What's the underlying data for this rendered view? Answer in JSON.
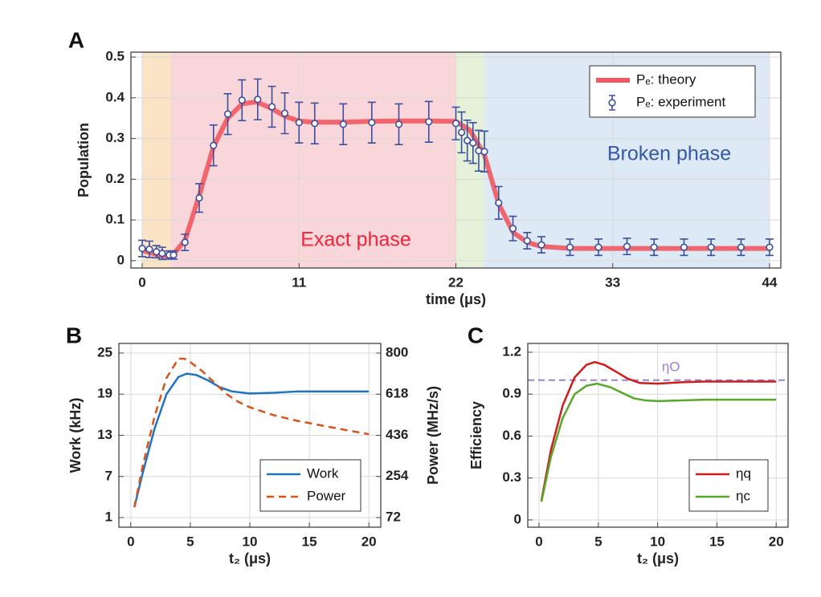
{
  "chart_data": [
    {
      "panel_label": "A",
      "type": "line",
      "xlabel": "time (μs)",
      "ylabel": "Population",
      "xlim": [
        -0.79,
        44.79
      ],
      "ylim": [
        -0.018,
        0.512
      ],
      "xticks": [
        0,
        11,
        22,
        33,
        44
      ],
      "yticks": [
        0,
        0.1,
        0.2,
        0.3,
        0.4,
        0.5
      ],
      "grid": true,
      "legend": "upper right",
      "regions": [
        {
          "from": 0,
          "to": 2,
          "color": "#fbe3c6"
        },
        {
          "from": 2,
          "to": 22,
          "color": "#f9d6d9"
        },
        {
          "from": 22,
          "to": 24,
          "color": "#e5f1d8"
        },
        {
          "from": 24,
          "to": 44,
          "color": "#dde9f4"
        }
      ],
      "annotations": [
        {
          "text": "Exact phase",
          "color": "#f2233a"
        },
        {
          "text": "Broken phase",
          "color": "#3358a8"
        }
      ],
      "series": [
        {
          "name": "Pₑ: theory",
          "style": "line",
          "color": "#f25860",
          "x": [
            0,
            1,
            2,
            3,
            4,
            5,
            6,
            7,
            8,
            9,
            10,
            11,
            12,
            14,
            16,
            18,
            20,
            22,
            23,
            24,
            25,
            26,
            27,
            28,
            30,
            35,
            40,
            44
          ],
          "values": [
            0.025,
            0.015,
            0.008,
            0.05,
            0.16,
            0.28,
            0.35,
            0.385,
            0.39,
            0.375,
            0.355,
            0.343,
            0.34,
            0.34,
            0.342,
            0.343,
            0.343,
            0.342,
            0.32,
            0.26,
            0.14,
            0.07,
            0.045,
            0.035,
            0.03,
            0.03,
            0.03,
            0.03
          ]
        },
        {
          "name": "Pₑ: experiment",
          "style": "errorbar",
          "color": "#3a4fa0",
          "x": [
            0,
            0.5,
            1,
            1.4,
            1.9,
            2.2,
            3,
            4,
            5,
            6,
            7,
            8.1,
            9.1,
            10,
            11,
            12.1,
            14.1,
            16.1,
            18,
            20.1,
            22,
            22.4,
            22.8,
            23.2,
            23.6,
            24,
            25,
            26,
            27,
            28,
            30,
            32,
            34,
            35.9,
            38,
            39.9,
            42,
            44
          ],
          "values": [
            0.03,
            0.028,
            0.022,
            0.018,
            0.014,
            0.014,
            0.045,
            0.154,
            0.283,
            0.36,
            0.394,
            0.396,
            0.378,
            0.362,
            0.339,
            0.337,
            0.335,
            0.339,
            0.335,
            0.341,
            0.337,
            0.315,
            0.295,
            0.289,
            0.27,
            0.268,
            0.142,
            0.079,
            0.049,
            0.039,
            0.033,
            0.033,
            0.035,
            0.033,
            0.033,
            0.033,
            0.033,
            0.033
          ],
          "errors": [
            0.02,
            0.02,
            0.015,
            0.015,
            0.01,
            0.01,
            0.02,
            0.035,
            0.05,
            0.05,
            0.05,
            0.05,
            0.05,
            0.05,
            0.05,
            0.05,
            0.05,
            0.05,
            0.05,
            0.05,
            0.04,
            0.05,
            0.05,
            0.05,
            0.05,
            0.05,
            0.04,
            0.03,
            0.02,
            0.02,
            0.02,
            0.02,
            0.02,
            0.02,
            0.02,
            0.02,
            0.02,
            0.02
          ]
        }
      ]
    },
    {
      "panel_label": "B",
      "type": "line",
      "xlabel": "t₂ (μs)",
      "ylabel": "Work (kHz)",
      "y2label": "Power (MHz/s)",
      "xlim": [
        -1,
        21
      ],
      "ylim": [
        -0.4,
        26.4
      ],
      "y2lim": [
        29.4,
        842.6
      ],
      "xticks": [
        0,
        5,
        10,
        15,
        20
      ],
      "yticks": [
        1,
        7,
        13,
        19,
        25
      ],
      "y2ticks": [
        72,
        254,
        436,
        618,
        800
      ],
      "grid": true,
      "legend": "lower right",
      "series": [
        {
          "name": "Work",
          "style": "line",
          "color": "#1f74c0",
          "x": [
            0.3,
            1,
            2,
            3,
            4,
            4.7,
            5.5,
            6.5,
            7.5,
            8.5,
            10,
            12,
            14,
            16,
            18,
            20
          ],
          "values": [
            2.5,
            7.5,
            14,
            19,
            21.5,
            22,
            21.8,
            21,
            20,
            19.4,
            19.1,
            19.2,
            19.4,
            19.4,
            19.4,
            19.4
          ]
        },
        {
          "name": "Power",
          "style": "line",
          "dashed": true,
          "axis": "y2",
          "color": "#d95319",
          "x": [
            0.3,
            1,
            2,
            3,
            4,
            4.5,
            5,
            6,
            7,
            8,
            9,
            10,
            12,
            14,
            16,
            18,
            20
          ],
          "values": [
            118,
            300,
            520,
            690,
            775,
            775,
            760,
            720,
            670,
            620,
            585,
            560,
            525,
            500,
            480,
            460,
            441
          ]
        }
      ]
    },
    {
      "panel_label": "C",
      "type": "line",
      "xlabel": "t₂ (μs)",
      "ylabel": "Efficiency",
      "xlim": [
        -0.95,
        21
      ],
      "ylim": [
        -0.052,
        1.263
      ],
      "xticks": [
        0,
        5,
        10,
        15,
        20
      ],
      "yticks": [
        0,
        0.3,
        0.6,
        0.9,
        1.2
      ],
      "grid": true,
      "legend": "lower right",
      "hlines": [
        {
          "value": 1.0,
          "label": "ηO",
          "color": "#9b80cc"
        }
      ],
      "series": [
        {
          "name": "ηq",
          "style": "line",
          "color": "#d21a1a",
          "x": [
            0.2,
            1,
            2,
            3,
            4,
            4.7,
            5.5,
            6.5,
            7.5,
            8.5,
            10,
            12,
            14,
            16,
            18,
            20
          ],
          "values": [
            0.14,
            0.5,
            0.82,
            1.02,
            1.11,
            1.13,
            1.11,
            1.06,
            1.01,
            0.98,
            0.975,
            0.985,
            0.99,
            0.99,
            0.99,
            0.99
          ]
        },
        {
          "name": "ηc",
          "style": "line",
          "color": "#55a82a",
          "x": [
            0.2,
            1,
            2,
            3,
            4,
            4.9,
            6,
            7,
            8,
            9,
            10,
            12,
            14,
            16,
            18,
            20
          ],
          "values": [
            0.13,
            0.45,
            0.73,
            0.9,
            0.96,
            0.975,
            0.95,
            0.91,
            0.87,
            0.855,
            0.85,
            0.855,
            0.86,
            0.86,
            0.86,
            0.86
          ]
        }
      ]
    }
  ]
}
